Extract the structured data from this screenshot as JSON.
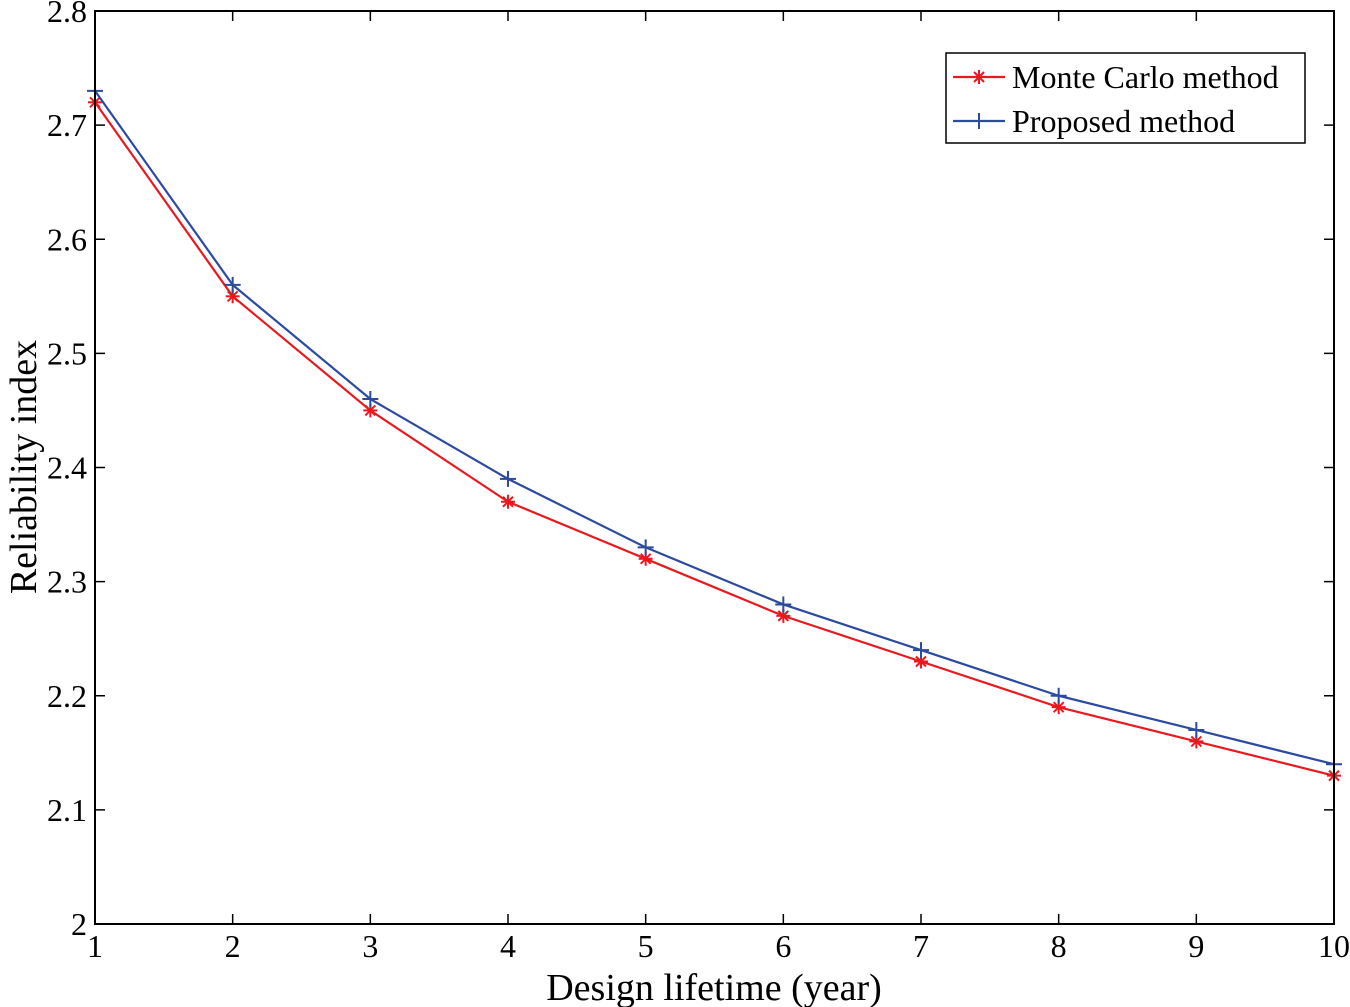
{
  "chart_data": {
    "type": "line",
    "title": "",
    "xlabel": "Design lifetime (year)",
    "ylabel": "Reliability index",
    "xlim": [
      1,
      10
    ],
    "ylim": [
      2,
      2.8
    ],
    "grid": false,
    "legend_position": "top-right",
    "x": [
      1,
      2,
      3,
      4,
      5,
      6,
      7,
      8,
      9,
      10
    ],
    "x_ticks": [
      "1",
      "2",
      "3",
      "4",
      "5",
      "6",
      "7",
      "8",
      "9",
      "10"
    ],
    "y_ticks": [
      "2",
      "2.1",
      "2.2",
      "2.3",
      "2.4",
      "2.5",
      "2.6",
      "2.7",
      "2.8"
    ],
    "series": [
      {
        "name": "Monte Carlo method",
        "color": "#e8191f",
        "marker": "asterisk",
        "values": [
          2.72,
          2.55,
          2.45,
          2.37,
          2.32,
          2.27,
          2.23,
          2.19,
          2.16,
          2.13
        ]
      },
      {
        "name": "Proposed method",
        "color": "#2c4a9e",
        "marker": "plus",
        "values": [
          2.73,
          2.56,
          2.46,
          2.39,
          2.33,
          2.28,
          2.24,
          2.2,
          2.17,
          2.14
        ]
      }
    ]
  }
}
